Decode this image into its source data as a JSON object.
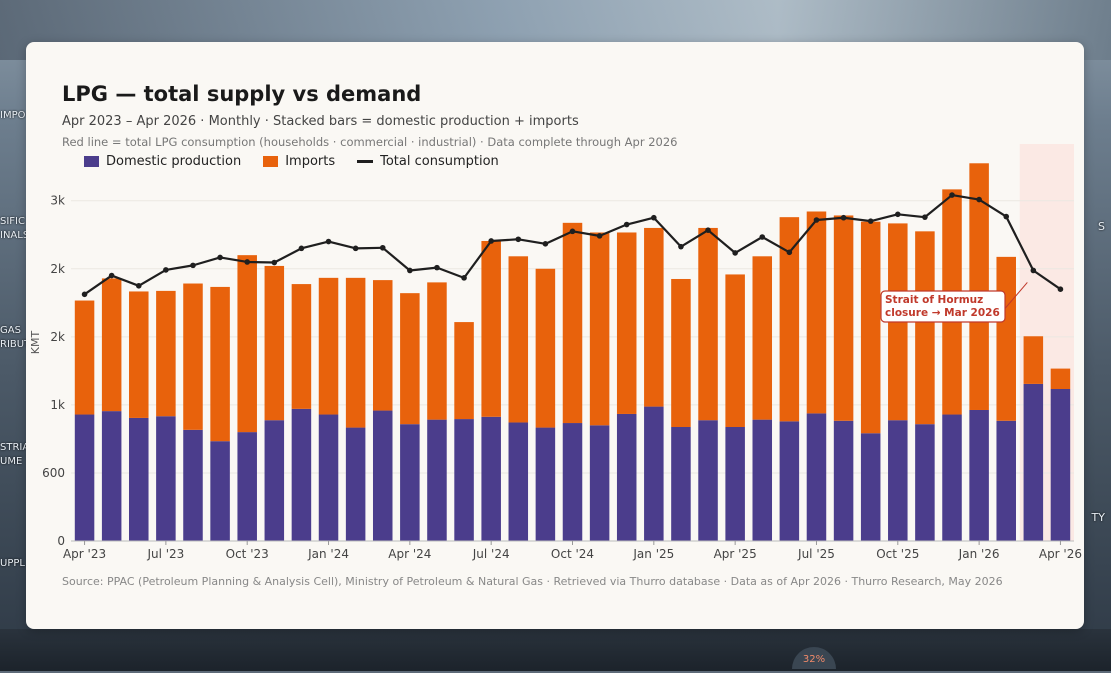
{
  "background": {
    "left_labels": [
      "IMPO",
      "SIFIC",
      "INALS",
      "GAS",
      "RIBUT",
      "STRIA",
      "UME",
      "UPPL"
    ],
    "right_labels": [
      "S",
      "TY"
    ],
    "badge": "32%"
  },
  "title": "LPG — total supply vs demand",
  "subtitle": "Apr 2023 – Apr 2026  ·  Monthly  ·  Stacked bars = domestic production + imports",
  "note": "Red line = total LPG consumption (households · commercial · industrial)  ·  Data complete through Apr 2026",
  "source": "Source: PPAC (Petroleum Planning & Analysis Cell), Ministry of Petroleum & Natural Gas · Retrieved via Thurro database · Data as of Apr 2026 · Thurro Research, May 2026",
  "colors": {
    "domestic": "#4b3d8c",
    "imports": "#e8620c",
    "line": "#1f1f1f",
    "annotation": "#c0392b",
    "shade": "#fbe9e4"
  },
  "chart_data": {
    "type": "bar",
    "ylabel": "KMT",
    "yticks": [
      0,
      600,
      1200,
      1800,
      2400,
      3000
    ],
    "ytick_labels": [
      "0",
      "600",
      "1k",
      "2k",
      "2k",
      "3k"
    ],
    "ylim": [
      0,
      3500
    ],
    "grid": true,
    "legend_position": "top-left",
    "xtick_labels": [
      "Apr '23",
      "Jul '23",
      "Oct '23",
      "Jan '24",
      "Apr '24",
      "Jul '24",
      "Oct '24",
      "Jan '25",
      "Apr '25",
      "Jul '25",
      "Oct '25",
      "Jan '26",
      "Apr '26"
    ],
    "xtick_indices": [
      0,
      3,
      6,
      9,
      12,
      15,
      18,
      21,
      24,
      27,
      30,
      33,
      36
    ],
    "categories": [
      "Apr '23",
      "May '23",
      "Jun '23",
      "Jul '23",
      "Aug '23",
      "Sep '23",
      "Oct '23",
      "Nov '23",
      "Dec '23",
      "Jan '24",
      "Feb '24",
      "Mar '24",
      "Apr '24",
      "May '24",
      "Jun '24",
      "Jul '24",
      "Aug '24",
      "Sep '24",
      "Oct '24",
      "Nov '24",
      "Dec '24",
      "Jan '25",
      "Feb '25",
      "Mar '25",
      "Apr '25",
      "May '25",
      "Jun '25",
      "Jul '25",
      "Aug '25",
      "Sep '25",
      "Oct '25",
      "Nov '25",
      "Dec '25",
      "Jan '26",
      "Feb '26",
      "Mar '26",
      "Apr '26"
    ],
    "series": [
      {
        "name": "Domestic production",
        "kind": "bar",
        "values": [
          1115,
          1145,
          1085,
          1100,
          980,
          880,
          960,
          1065,
          1165,
          1115,
          1000,
          1150,
          1030,
          1070,
          1075,
          1095,
          1045,
          1000,
          1040,
          1020,
          1120,
          1185,
          1005,
          1065,
          1005,
          1070,
          1055,
          1125,
          1060,
          950,
          1065,
          1030,
          1115,
          1155,
          1060,
          1385,
          1340
        ]
      },
      {
        "name": "Imports",
        "kind": "bar",
        "values": [
          1005,
          1170,
          1115,
          1105,
          1290,
          1360,
          1560,
          1360,
          1100,
          1205,
          1320,
          1150,
          1155,
          1210,
          855,
          1550,
          1465,
          1400,
          1765,
          1700,
          1600,
          1575,
          1305,
          1695,
          1345,
          1440,
          1800,
          1780,
          1810,
          1865,
          1735,
          1700,
          1985,
          2175,
          1445,
          420,
          180
        ]
      },
      {
        "name": "Total consumption",
        "kind": "line",
        "values": [
          2175,
          2340,
          2250,
          2390,
          2430,
          2500,
          2460,
          2455,
          2580,
          2640,
          2580,
          2585,
          2385,
          2410,
          2320,
          2645,
          2660,
          2620,
          2730,
          2690,
          2790,
          2850,
          2595,
          2740,
          2540,
          2680,
          2545,
          2830,
          2850,
          2820,
          2880,
          2855,
          3050,
          3010,
          2860,
          2385,
          2220
        ]
      }
    ],
    "shaded_region": {
      "from_index": 35,
      "to_index": 36
    },
    "annotation": {
      "text_lines": [
        "Strait of Hormuz",
        "closure → Mar 2026"
      ],
      "target_index": 35
    }
  }
}
